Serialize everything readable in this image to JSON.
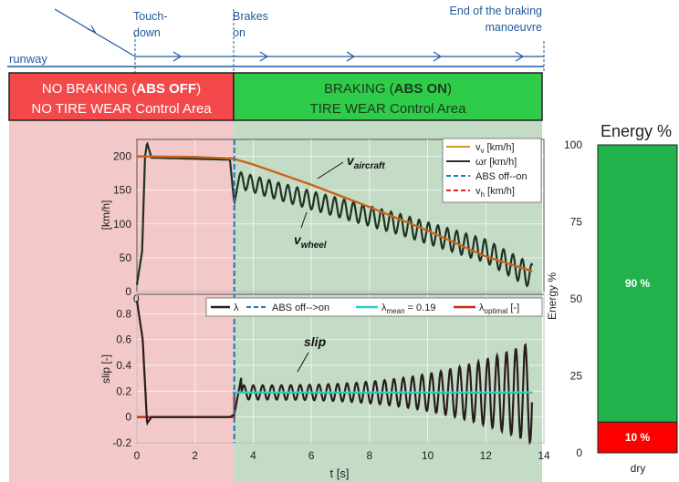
{
  "timeline": {
    "runway_label": "runway",
    "touchdown_label": [
      "Touch-",
      "down"
    ],
    "brakes_label": [
      "Brakes",
      "on"
    ],
    "end_label": [
      "End of the braking",
      "manoeuvre"
    ]
  },
  "banners": {
    "left_line1_prefix": "NO BRAKING (",
    "left_line1_bold": "ABS OFF",
    "left_line1_suffix": ")",
    "left_line2": "NO TIRE WEAR Control Area",
    "right_line1_prefix": "BRAKING (",
    "right_line1_bold": "ABS ON",
    "right_line1_suffix": ")",
    "right_line2": "TIRE WEAR Control Area",
    "left_color": "#f4494a",
    "right_color": "#2ecc48"
  },
  "colors": {
    "left_region": "#f2c8c8",
    "right_region": "#c4dcc6",
    "aircraft": "#c8641e",
    "wheel": "#1f3322",
    "abs_line": "#1f77b4",
    "vh": "#d62728",
    "slip": "#2a1d1d",
    "lambda_mean": "#22d3c8",
    "lambda_opt": "#cc2a10",
    "energy_green": "#22b24c",
    "energy_red": "#ff0000"
  },
  "chart_data": [
    {
      "type": "line",
      "ylabel": "[km/h]",
      "ylim": [
        0,
        225
      ],
      "xlim": [
        0,
        14
      ],
      "yticks": [
        0,
        50,
        100,
        150,
        200
      ],
      "grid": true,
      "legend_position": "top-right",
      "abs_on_time": 3.35,
      "legend": [
        "v_v [km/h]",
        "ωr [km/h]",
        "ABS off--on",
        "v_h [km/h]"
      ],
      "annotations": {
        "aircraft": "v_aircraft",
        "wheel": "v_wheel"
      },
      "series": [
        {
          "name": "v_v [km/h]",
          "x": [
            0,
            1,
            2,
            3,
            3.35,
            4,
            6,
            8,
            10,
            12,
            13.6
          ],
          "values": [
            200,
            199.5,
            199,
            197.5,
            196,
            188,
            158,
            125,
            90,
            52,
            30
          ]
        },
        {
          "name": "ωr [km/h]",
          "note": "oscillating",
          "mean_values_x": [
            0,
            0.18,
            0.28,
            0.35,
            0.5,
            3.2,
            3.35,
            3.5,
            6,
            9,
            12,
            13.6
          ],
          "mean_values": [
            10,
            60,
            200,
            220,
            198,
            195,
            130,
            165,
            135,
            100,
            60,
            22
          ]
        },
        {
          "name": "v_h [km/h]",
          "x": [
            0,
            3.35
          ],
          "values": [
            200,
            197
          ]
        }
      ]
    },
    {
      "type": "line",
      "ylabel": "slip [-]",
      "xlabel": "t [s]",
      "ylim": [
        -0.2,
        0.95
      ],
      "xlim": [
        0,
        14
      ],
      "yticks": [
        -0.2,
        0,
        0.2,
        0.4,
        0.6,
        0.8
      ],
      "xticks": [
        0,
        2,
        4,
        6,
        8,
        10,
        12,
        14
      ],
      "grid": true,
      "legend_position": "top",
      "legend": [
        "λ",
        "ABS off-->on",
        "λ_mean = 0.19",
        "λ_optimal [-]"
      ],
      "annotations": {
        "slip": "slip"
      },
      "lambda_mean": 0.19,
      "series": [
        {
          "name": "λ",
          "note": "oscillating",
          "x": [
            0,
            0.2,
            0.35,
            0.5,
            3.2,
            3.35,
            3.6,
            8,
            13.6
          ],
          "values": [
            0.9,
            0.6,
            -0.05,
            0.0,
            0.0,
            0.02,
            0.19,
            0.19,
            0.19
          ]
        },
        {
          "name": "λ_optimal [-]",
          "x": [
            0,
            3.35,
            3.35,
            13.6
          ],
          "values": [
            0.0,
            0.0,
            0.19,
            0.19
          ]
        }
      ]
    },
    {
      "type": "bar",
      "title": "Energy %",
      "ylabel": "Energy %",
      "ylim": [
        0,
        100
      ],
      "yticks": [
        0,
        25,
        50,
        75,
        100
      ],
      "categories": [
        "dry"
      ],
      "series": [
        {
          "name": "90 %",
          "values": [
            90
          ],
          "color": "#22b24c"
        },
        {
          "name": "10 %",
          "values": [
            10
          ],
          "color": "#ff0000"
        }
      ]
    }
  ]
}
